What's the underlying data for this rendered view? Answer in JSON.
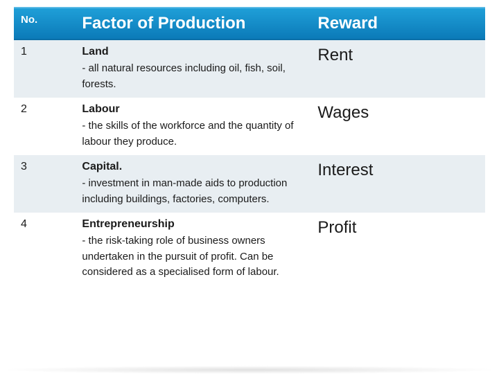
{
  "header": {
    "no": "No.",
    "factor": "Factor of Production",
    "reward": "Reward"
  },
  "rows": [
    {
      "num": "1",
      "title": "Land",
      "desc": " - all natural resources including oil, fish, soil, forests.",
      "reward": "Rent"
    },
    {
      "num": "2",
      "title": "Labour",
      "desc": " - the skills of the workforce and the quantity of labour they produce.",
      "reward": "Wages"
    },
    {
      "num": "3",
      "title": "Capital.",
      "desc": "- investment in man-made aids to production including buildings, factories, computers.",
      "reward": "Interest"
    },
    {
      "num": "4",
      "title": "Entrepreneurship",
      "desc": " - the risk-taking role of business owners undertaken in the pursuit of profit. Can be considered as a specialised form of labour.",
      "reward": "Profit"
    }
  ],
  "style": {
    "header_bg_top": "#1f9fd8",
    "header_bg_bottom": "#0b7ab8",
    "header_text_color": "#ffffff",
    "row_odd_bg": "#e8eef2",
    "row_even_bg": "#ffffff",
    "text_color": "#1a1a1a",
    "header_no_fontsize": 15,
    "header_factor_fontsize": 24,
    "header_reward_fontsize": 24,
    "num_fontsize": 16,
    "factor_title_fontsize": 16,
    "factor_desc_fontsize": 15,
    "reward_fontsize": 24,
    "col_no_width_pct": 13,
    "col_factor_width_pct": 50,
    "col_reward_width_pct": 37
  }
}
